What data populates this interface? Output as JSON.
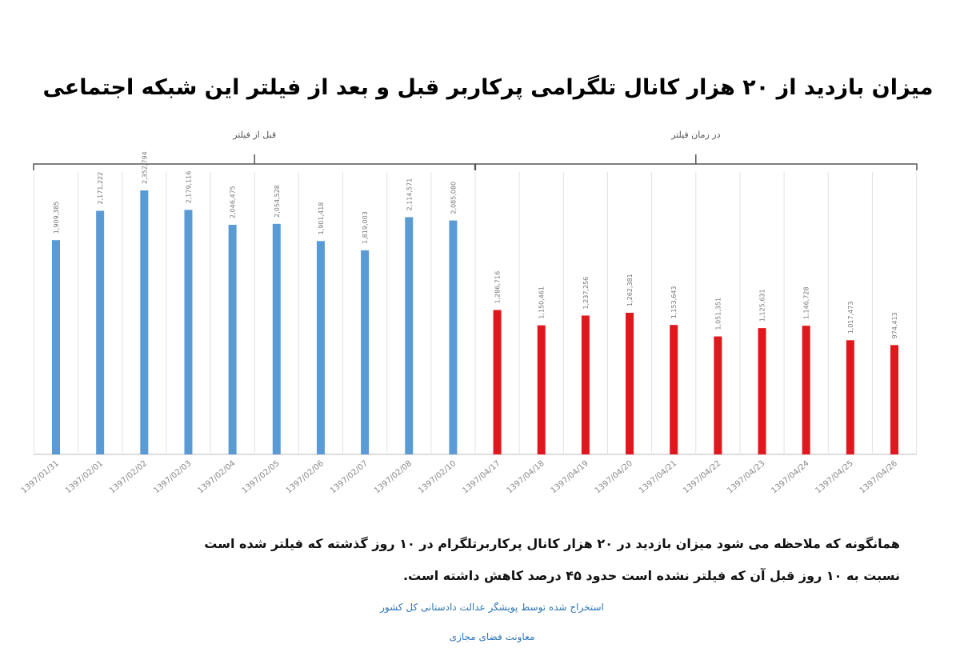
{
  "chart_data": {
    "type": "bar",
    "title": "میزان بازدید از ۲۰ هزار کانال تلگرامی پرکاربر قبل و بعد از فیلتر این شبکه اجتماعی",
    "categories": [
      "1397/01/31",
      "1397/02/01",
      "1397/02/02",
      "1397/02/03",
      "1397/02/04",
      "1397/02/05",
      "1397/02/06",
      "1397/02/07",
      "1397/02/08",
      "1397/02/10",
      "1397/04/17",
      "1397/04/18",
      "1397/04/19",
      "1397/04/20",
      "1397/04/21",
      "1397/04/22",
      "1397/04/23",
      "1397/04/24",
      "1397/04/25",
      "1397/04/26"
    ],
    "series": [
      {
        "name": "قبل از فیلتر",
        "color": "#5b9bd5",
        "values": [
          1909385,
          2171222,
          2352794,
          2179116,
          2046475,
          2054528,
          1901418,
          1819003,
          2114571,
          2085080,
          null,
          null,
          null,
          null,
          null,
          null,
          null,
          null,
          null,
          null
        ],
        "value_labels": [
          "1,909,385",
          "2,171,222",
          "2,352,794",
          "2,179,116",
          "2,046,475",
          "2,054,528",
          "1,901,418",
          "1,819,003",
          "2,114,571",
          "2,085,080",
          null,
          null,
          null,
          null,
          null,
          null,
          null,
          null,
          null,
          null
        ]
      },
      {
        "name": "در زمان فیلتر",
        "color": "#e0171d",
        "values": [
          null,
          null,
          null,
          null,
          null,
          null,
          null,
          null,
          null,
          null,
          1286716,
          1150461,
          1237256,
          1262381,
          1153643,
          1051351,
          1125631,
          1146728,
          1017473,
          974413
        ],
        "value_labels": [
          null,
          null,
          null,
          null,
          null,
          null,
          null,
          null,
          null,
          null,
          "1,286,716",
          "1,150,461",
          "1,237,256",
          "1,262,381",
          "1,153,643",
          "1,051,351",
          "1,125,631",
          "1,146,728",
          "1,017,473",
          "974,413"
        ]
      }
    ],
    "note": [
      "همانگونه که ملاحظه می شود میزان بازدید در ۲۰ هزار کانال پرکاربرتلگرام در ۱۰ روز گذشته که فیلتر شده است",
      "نسبت به ۱۰ روز قبل آن که فیلتر نشده است حدود ۴۵ درصد کاهش داشته است."
    ],
    "source": [
      "استخراج شده توسط پویشگر عدالت دادستانی کل کشور",
      "معاونت فضای مجازی"
    ]
  }
}
